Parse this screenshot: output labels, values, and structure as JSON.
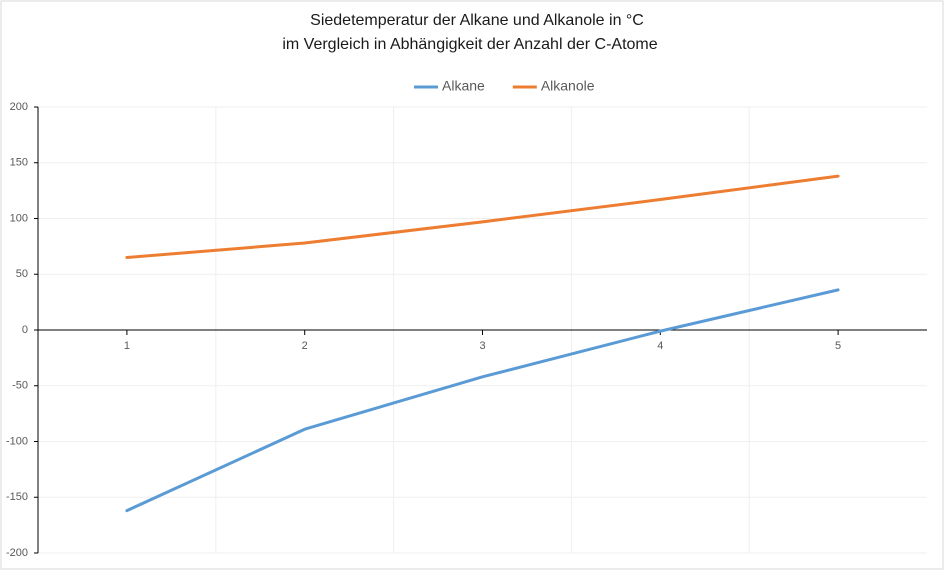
{
  "chart_data": {
    "type": "line",
    "title": "Siedetemperatur der Alkane und Alkanole in °C",
    "subtitle": "im Vergleich in Abhängigkeit der Anzahl der C-Atome",
    "categories": [
      "1",
      "2",
      "3",
      "4",
      "5"
    ],
    "series": [
      {
        "name": "Alkane",
        "color": "#5b9bd5",
        "values": [
          -162,
          -89,
          -42,
          -1,
          36
        ]
      },
      {
        "name": "Alkanole",
        "color": "#ed7d31",
        "values": [
          65,
          78,
          97,
          117,
          138
        ]
      }
    ],
    "ylim": [
      -200,
      200
    ],
    "yticks": [
      -200,
      -150,
      -100,
      -50,
      0,
      50,
      100,
      150,
      200
    ],
    "grid": true,
    "legend": "top"
  }
}
